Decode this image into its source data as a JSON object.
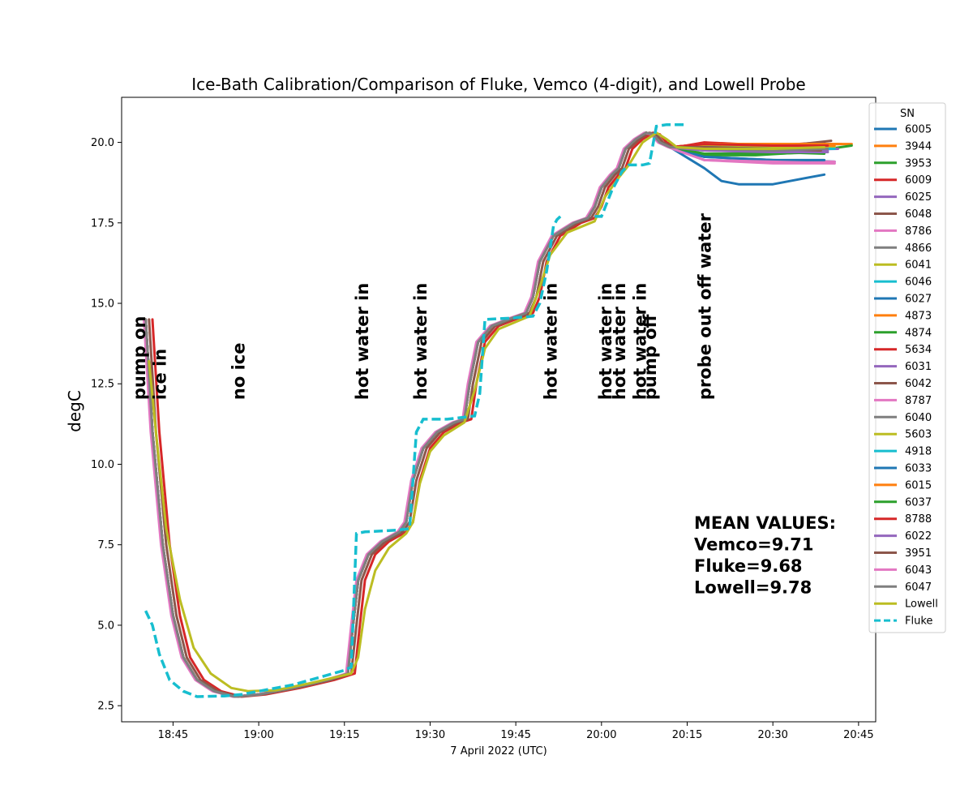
{
  "chart_data": {
    "type": "line",
    "title": "Ice-Bath Calibration/Comparison of Fluke, Vemco (4-digit), and Lowell Probe",
    "xlabel": "7 April 2022 (UTC)",
    "ylabel": "degC",
    "xlim": [
      18.6,
      20.8
    ],
    "ylim": [
      2.0,
      21.4
    ],
    "x_ticks": [
      {
        "v": 18.75,
        "label": "18:45"
      },
      {
        "v": 19.0,
        "label": "19:00"
      },
      {
        "v": 19.25,
        "label": "19:15"
      },
      {
        "v": 19.5,
        "label": "19:30"
      },
      {
        "v": 19.75,
        "label": "19:45"
      },
      {
        "v": 20.0,
        "label": "20:00"
      },
      {
        "v": 20.25,
        "label": "20:15"
      },
      {
        "v": 20.5,
        "label": "20:30"
      },
      {
        "v": 20.75,
        "label": "20:45"
      }
    ],
    "y_ticks": [
      {
        "v": 2.5,
        "label": "2.5"
      },
      {
        "v": 5.0,
        "label": "5.0"
      },
      {
        "v": 7.5,
        "label": "7.5"
      },
      {
        "v": 10.0,
        "label": "10.0"
      },
      {
        "v": 12.5,
        "label": "12.5"
      },
      {
        "v": 15.0,
        "label": "15.0"
      },
      {
        "v": 17.5,
        "label": "17.5"
      },
      {
        "v": 20.0,
        "label": "20.0"
      }
    ],
    "legend": {
      "title": "SN",
      "placement": "right, outside plot",
      "entries": [
        {
          "name": "6005",
          "color": "#1f77b4"
        },
        {
          "name": "3944",
          "color": "#ff7f0e"
        },
        {
          "name": "3953",
          "color": "#2ca02c"
        },
        {
          "name": "6009",
          "color": "#d62728"
        },
        {
          "name": "6025",
          "color": "#9467bd"
        },
        {
          "name": "6048",
          "color": "#8c564b"
        },
        {
          "name": "8786",
          "color": "#e377c2"
        },
        {
          "name": "4866",
          "color": "#7f7f7f"
        },
        {
          "name": "6041",
          "color": "#bcbd22"
        },
        {
          "name": "6046",
          "color": "#17becf"
        },
        {
          "name": "6027",
          "color": "#1f77b4"
        },
        {
          "name": "4873",
          "color": "#ff7f0e"
        },
        {
          "name": "4874",
          "color": "#2ca02c"
        },
        {
          "name": "5634",
          "color": "#d62728"
        },
        {
          "name": "6031",
          "color": "#9467bd"
        },
        {
          "name": "6042",
          "color": "#8c564b"
        },
        {
          "name": "8787",
          "color": "#e377c2"
        },
        {
          "name": "6040",
          "color": "#7f7f7f"
        },
        {
          "name": "5603",
          "color": "#bcbd22"
        },
        {
          "name": "4918",
          "color": "#17becf"
        },
        {
          "name": "6033",
          "color": "#1f77b4"
        },
        {
          "name": "6015",
          "color": "#ff7f0e"
        },
        {
          "name": "6037",
          "color": "#2ca02c"
        },
        {
          "name": "8788",
          "color": "#d62728"
        },
        {
          "name": "6022",
          "color": "#9467bd"
        },
        {
          "name": "3951",
          "color": "#8c564b"
        },
        {
          "name": "6043",
          "color": "#e377c2"
        },
        {
          "name": "6047",
          "color": "#7f7f7f"
        },
        {
          "name": "Lowell",
          "color": "#bcbd22"
        },
        {
          "name": "Fluke",
          "color": "#17becf",
          "dashed": true
        }
      ]
    },
    "base_curve": [
      [
        18.67,
        14.5
      ],
      [
        18.69,
        11.0
      ],
      [
        18.72,
        7.5
      ],
      [
        18.75,
        5.3
      ],
      [
        18.78,
        4.0
      ],
      [
        18.82,
        3.3
      ],
      [
        18.87,
        2.95
      ],
      [
        18.93,
        2.78
      ],
      [
        19.0,
        2.85
      ],
      [
        19.1,
        3.05
      ],
      [
        19.2,
        3.3
      ],
      [
        19.26,
        3.5
      ],
      [
        19.275,
        5.0
      ],
      [
        19.29,
        6.4
      ],
      [
        19.32,
        7.2
      ],
      [
        19.36,
        7.6
      ],
      [
        19.41,
        7.9
      ],
      [
        19.43,
        8.2
      ],
      [
        19.45,
        9.5
      ],
      [
        19.48,
        10.5
      ],
      [
        19.52,
        11.0
      ],
      [
        19.57,
        11.3
      ],
      [
        19.6,
        11.4
      ],
      [
        19.615,
        12.5
      ],
      [
        19.64,
        13.8
      ],
      [
        19.68,
        14.3
      ],
      [
        19.74,
        14.55
      ],
      [
        19.78,
        14.7
      ],
      [
        19.8,
        15.2
      ],
      [
        19.82,
        16.3
      ],
      [
        19.86,
        17.1
      ],
      [
        19.92,
        17.5
      ],
      [
        19.96,
        17.65
      ],
      [
        19.98,
        18.0
      ],
      [
        20.0,
        18.6
      ],
      [
        20.03,
        19.0
      ],
      [
        20.05,
        19.2
      ],
      [
        20.07,
        19.8
      ],
      [
        20.1,
        20.1
      ],
      [
        20.13,
        20.3
      ],
      [
        20.15,
        20.25
      ],
      [
        20.17,
        20.0
      ],
      [
        20.2,
        19.85
      ]
    ],
    "series": [
      {
        "name": "6005",
        "color": "#1f77b4",
        "offset": 0.0,
        "tail": [
          [
            20.3,
            19.2
          ],
          [
            20.35,
            18.8
          ],
          [
            20.4,
            18.7
          ],
          [
            20.5,
            18.7
          ],
          [
            20.6,
            18.9
          ],
          [
            20.65,
            19.0
          ]
        ]
      },
      {
        "name": "3944",
        "color": "#ff7f0e",
        "offset": 0.0,
        "tail": [
          [
            20.3,
            19.9
          ],
          [
            20.5,
            19.95
          ],
          [
            20.6,
            19.95
          ],
          [
            20.73,
            19.95
          ]
        ]
      },
      {
        "name": "3953",
        "color": "#2ca02c",
        "offset": 0.0,
        "tail": [
          [
            20.3,
            19.6
          ],
          [
            20.45,
            19.6
          ],
          [
            20.6,
            19.7
          ],
          [
            20.73,
            19.9
          ]
        ]
      },
      {
        "name": "6009",
        "color": "#d62728",
        "offset": 0.02,
        "tail": [
          [
            20.3,
            20.0
          ],
          [
            20.5,
            19.9
          ],
          [
            20.65,
            20.0
          ]
        ]
      },
      {
        "name": "6025",
        "color": "#9467bd",
        "offset": 0.0,
        "tail": [
          [
            20.3,
            19.8
          ],
          [
            20.5,
            19.75
          ],
          [
            20.69,
            19.8
          ]
        ]
      },
      {
        "name": "6048",
        "color": "#8c564b",
        "offset": 0.01,
        "tail": [
          [
            20.3,
            19.9
          ],
          [
            20.5,
            19.85
          ],
          [
            20.67,
            20.05
          ]
        ]
      },
      {
        "name": "8786",
        "color": "#e377c2",
        "offset": 0.0,
        "tail": [
          [
            20.3,
            19.45
          ],
          [
            20.5,
            19.35
          ],
          [
            20.68,
            19.35
          ]
        ]
      },
      {
        "name": "4866",
        "color": "#7f7f7f",
        "offset": 0.0,
        "tail": [
          [
            20.3,
            19.9
          ],
          [
            20.5,
            19.85
          ],
          [
            20.68,
            19.85
          ]
        ]
      },
      {
        "name": "6041",
        "color": "#bcbd22",
        "offset": 0.0,
        "tail": [
          [
            20.3,
            19.85
          ],
          [
            20.5,
            19.8
          ],
          [
            20.68,
            19.85
          ]
        ]
      },
      {
        "name": "6046",
        "color": "#17becf",
        "offset": 0.0,
        "tail": [
          [
            20.3,
            19.85
          ],
          [
            20.5,
            19.8
          ],
          [
            20.68,
            19.8
          ]
        ]
      },
      {
        "name": "6027",
        "color": "#1f77b4",
        "offset": 0.0,
        "tail": [
          [
            20.3,
            19.55
          ],
          [
            20.5,
            19.45
          ],
          [
            20.68,
            19.4
          ]
        ]
      },
      {
        "name": "4873",
        "color": "#ff7f0e",
        "offset": 0.0,
        "tail": [
          [
            20.3,
            19.95
          ],
          [
            20.5,
            19.95
          ],
          [
            20.7,
            19.95
          ]
        ]
      },
      {
        "name": "4874",
        "color": "#2ca02c",
        "offset": 0.0,
        "tail": [
          [
            20.3,
            19.6
          ],
          [
            20.5,
            19.7
          ],
          [
            20.65,
            19.65
          ]
        ]
      },
      {
        "name": "5634",
        "color": "#d62728",
        "offset": 0.0,
        "tail": [
          [
            20.3,
            19.95
          ],
          [
            20.5,
            19.9
          ],
          [
            20.65,
            19.9
          ]
        ]
      },
      {
        "name": "6031",
        "color": "#9467bd",
        "offset": 0.0,
        "tail": [
          [
            20.3,
            19.75
          ],
          [
            20.5,
            19.7
          ],
          [
            20.66,
            19.75
          ]
        ]
      },
      {
        "name": "6042",
        "color": "#8c564b",
        "offset": 0.0,
        "tail": [
          [
            20.3,
            19.85
          ],
          [
            20.5,
            19.8
          ],
          [
            20.66,
            19.85
          ]
        ]
      },
      {
        "name": "8787",
        "color": "#e377c2",
        "offset": 0.0,
        "tail": [
          [
            20.3,
            19.45
          ],
          [
            20.5,
            19.4
          ],
          [
            20.68,
            19.4
          ]
        ]
      },
      {
        "name": "6040",
        "color": "#7f7f7f",
        "offset": 0.0,
        "tail": [
          [
            20.3,
            19.85
          ],
          [
            20.5,
            19.85
          ],
          [
            20.67,
            19.85
          ]
        ]
      },
      {
        "name": "5603",
        "color": "#bcbd22",
        "offset": 0.0,
        "tail": [
          [
            20.3,
            19.9
          ],
          [
            20.5,
            19.85
          ],
          [
            20.67,
            19.85
          ]
        ]
      },
      {
        "name": "4918",
        "color": "#17becf",
        "offset": 0.0,
        "tail": [
          [
            20.3,
            19.85
          ],
          [
            20.5,
            19.8
          ],
          [
            20.67,
            19.8
          ]
        ]
      },
      {
        "name": "6033",
        "color": "#1f77b4",
        "offset": 0.0,
        "tail": [
          [
            20.3,
            19.55
          ],
          [
            20.5,
            19.45
          ],
          [
            20.65,
            19.45
          ]
        ]
      },
      {
        "name": "6015",
        "color": "#ff7f0e",
        "offset": 0.0,
        "tail": [
          [
            20.3,
            19.95
          ],
          [
            20.5,
            19.95
          ],
          [
            20.68,
            19.9
          ]
        ]
      },
      {
        "name": "6037",
        "color": "#2ca02c",
        "offset": 0.0,
        "tail": [
          [
            20.3,
            19.65
          ],
          [
            20.5,
            19.65
          ],
          [
            20.66,
            19.7
          ]
        ]
      },
      {
        "name": "8788",
        "color": "#d62728",
        "offset": 0.0,
        "tail": [
          [
            20.3,
            19.95
          ],
          [
            20.5,
            19.9
          ],
          [
            20.66,
            19.9
          ]
        ]
      },
      {
        "name": "6022",
        "color": "#9467bd",
        "offset": 0.0,
        "tail": [
          [
            20.3,
            19.75
          ],
          [
            20.5,
            19.7
          ],
          [
            20.66,
            19.7
          ]
        ]
      },
      {
        "name": "3951",
        "color": "#8c564b",
        "offset": 0.0,
        "tail": [
          [
            20.3,
            19.85
          ],
          [
            20.5,
            19.8
          ],
          [
            20.64,
            19.75
          ]
        ]
      },
      {
        "name": "6043",
        "color": "#e377c2",
        "offset": -0.005,
        "tail": [
          [
            20.3,
            19.45
          ],
          [
            20.5,
            19.4
          ],
          [
            20.68,
            19.35
          ]
        ]
      },
      {
        "name": "6047",
        "color": "#7f7f7f",
        "offset": 0.0,
        "tail": [
          [
            20.3,
            19.8
          ],
          [
            20.5,
            19.75
          ],
          [
            20.66,
            19.8
          ]
        ]
      },
      {
        "name": "Lowell",
        "color": "#bcbd22",
        "offset": 0.015,
        "tail": [
          [
            20.3,
            19.8
          ],
          [
            20.5,
            19.8
          ],
          [
            20.65,
            19.85
          ]
        ]
      }
    ],
    "lowell_curve": [
      [
        18.68,
        13.2
      ],
      [
        18.7,
        11.0
      ],
      [
        18.73,
        8.0
      ],
      [
        18.77,
        5.8
      ],
      [
        18.81,
        4.3
      ],
      [
        18.86,
        3.5
      ],
      [
        18.92,
        3.05
      ],
      [
        18.97,
        2.95
      ],
      [
        19.05,
        2.98
      ],
      [
        19.15,
        3.2
      ],
      [
        19.27,
        3.5
      ],
      [
        19.29,
        4.0
      ],
      [
        19.31,
        5.5
      ],
      [
        19.34,
        6.7
      ],
      [
        19.38,
        7.4
      ],
      [
        19.43,
        7.85
      ],
      [
        19.45,
        8.2
      ],
      [
        19.47,
        9.4
      ],
      [
        19.5,
        10.4
      ],
      [
        19.54,
        10.9
      ],
      [
        19.6,
        11.3
      ],
      [
        19.63,
        12.3
      ],
      [
        19.66,
        13.6
      ],
      [
        19.7,
        14.2
      ],
      [
        19.79,
        14.6
      ],
      [
        19.82,
        15.5
      ],
      [
        19.85,
        16.5
      ],
      [
        19.9,
        17.2
      ],
      [
        19.98,
        17.55
      ],
      [
        20.01,
        18.3
      ],
      [
        20.05,
        18.9
      ],
      [
        20.08,
        19.3
      ],
      [
        20.12,
        20.0
      ],
      [
        20.16,
        20.3
      ],
      [
        20.19,
        20.1
      ],
      [
        20.22,
        19.85
      ],
      [
        20.3,
        19.8
      ],
      [
        20.5,
        19.8
      ],
      [
        20.65,
        19.85
      ]
    ],
    "fluke": [
      [
        18.67,
        5.45
      ],
      [
        18.69,
        5.0
      ],
      [
        18.71,
        4.1
      ],
      [
        18.74,
        3.3
      ],
      [
        18.78,
        2.95
      ],
      [
        18.82,
        2.78
      ],
      [
        18.9,
        2.8
      ],
      [
        18.95,
        2.85
      ],
      [
        19.0,
        2.95
      ],
      [
        19.1,
        3.15
      ],
      [
        19.25,
        3.6
      ],
      [
        19.27,
        3.7
      ],
      [
        19.285,
        7.85
      ],
      [
        19.31,
        7.9
      ],
      [
        19.4,
        7.95
      ],
      [
        19.44,
        8.0
      ],
      [
        19.46,
        11.0
      ],
      [
        19.48,
        11.4
      ],
      [
        19.55,
        11.4
      ],
      [
        19.63,
        11.5
      ],
      [
        19.645,
        12.2
      ],
      [
        19.66,
        14.5
      ],
      [
        19.75,
        14.55
      ],
      [
        19.8,
        14.6
      ],
      [
        19.82,
        15.0
      ],
      [
        19.84,
        16.0
      ],
      [
        19.86,
        17.4
      ],
      [
        19.87,
        17.6
      ],
      [
        19.88,
        17.7
      ]
    ],
    "fluke_later": [
      [
        19.98,
        17.7
      ],
      [
        20.0,
        17.7
      ],
      [
        20.03,
        18.5
      ],
      [
        20.06,
        19.1
      ],
      [
        20.08,
        19.3
      ],
      [
        20.12,
        19.3
      ],
      [
        20.14,
        19.35
      ],
      [
        20.16,
        20.5
      ],
      [
        20.19,
        20.55
      ],
      [
        20.23,
        20.55
      ],
      [
        20.25,
        20.55
      ]
    ],
    "annotations": [
      {
        "text": "pump on",
        "x": 18.65,
        "y": 12.0
      },
      {
        "text": "ice in",
        "x": 18.71,
        "y": 12.0
      },
      {
        "text": "no ice",
        "x": 18.94,
        "y": 12.0
      },
      {
        "text": "hot water in",
        "x": 19.3,
        "y": 12.0
      },
      {
        "text": "hot water in",
        "x": 19.47,
        "y": 12.0
      },
      {
        "text": "hot water in",
        "x": 19.85,
        "y": 12.0
      },
      {
        "text": "hot water in",
        "x": 20.01,
        "y": 12.0
      },
      {
        "text": "hot water in",
        "x": 20.05,
        "y": 12.0
      },
      {
        "text": "hot water in",
        "x": 20.11,
        "y": 12.0
      },
      {
        "text": "pump off",
        "x": 20.14,
        "y": 12.0
      },
      {
        "text": "probe out off water",
        "x": 20.3,
        "y": 12.0
      }
    ],
    "mean_values": {
      "header": "MEAN VALUES:",
      "vemco": "Vemco=9.71",
      "fluke": "Fluke=9.68",
      "lowell": "Lowell=9.78",
      "x": 20.27,
      "y": 8.0
    }
  }
}
